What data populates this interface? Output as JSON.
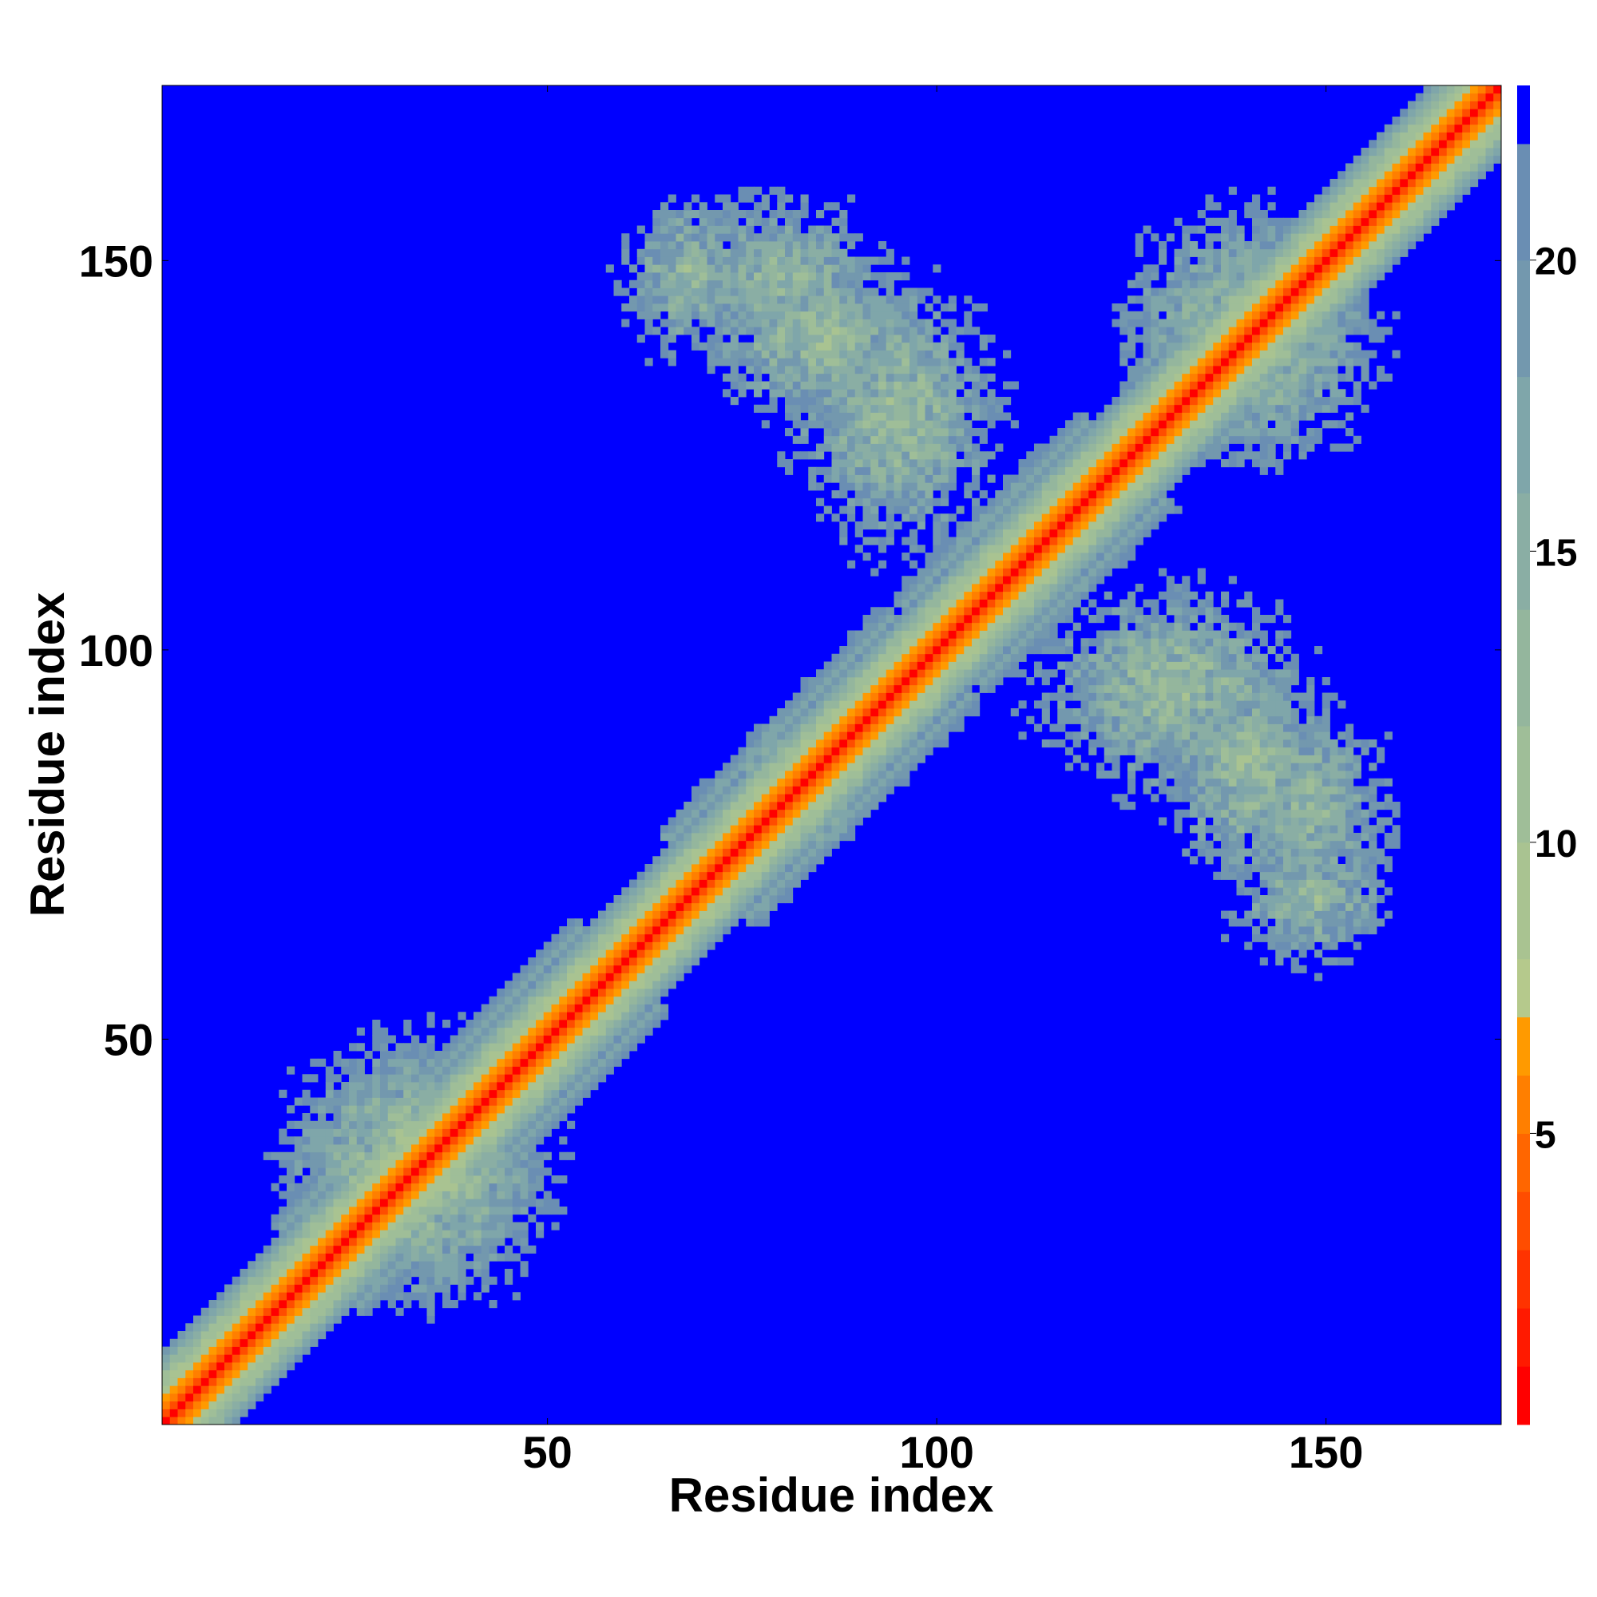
{
  "chart_data": {
    "type": "heatmap",
    "title": "",
    "xlabel": "Residue index",
    "ylabel": "Residue index",
    "n_residues": 172,
    "xlim": [
      1,
      172
    ],
    "ylim": [
      1,
      172
    ],
    "x_ticks": [
      50,
      100,
      150
    ],
    "y_ticks": [
      50,
      100,
      150
    ],
    "colorbar": {
      "range": [
        0,
        23
      ],
      "ticks": [
        5,
        10,
        15,
        20
      ],
      "levels": [
        {
          "max": 1,
          "color": "#ff0000"
        },
        {
          "max": 2,
          "color": "#ff1a00"
        },
        {
          "max": 3,
          "color": "#ff3300"
        },
        {
          "max": 4,
          "color": "#ff4d00"
        },
        {
          "max": 5,
          "color": "#ff6600"
        },
        {
          "max": 6,
          "color": "#ff7f00"
        },
        {
          "max": 7,
          "color": "#ff9a00"
        },
        {
          "max": 8,
          "color": "#b5c98c"
        },
        {
          "max": 10,
          "color": "#a9c391"
        },
        {
          "max": 12,
          "color": "#9fbe98"
        },
        {
          "max": 14,
          "color": "#94b69d"
        },
        {
          "max": 16,
          "color": "#8aaea4"
        },
        {
          "max": 18,
          "color": "#7fa6aa"
        },
        {
          "max": 20,
          "color": "#7398ae"
        },
        {
          "max": 22,
          "color": "#6a8eb3"
        },
        {
          "max": 23,
          "color": "#0000ff"
        }
      ],
      "far_color": "#0000ff"
    },
    "description_values": {
      "diagonal_width": 0.5,
      "near_diagonal_width": 8,
      "contact_patches": [
        {
          "x": [
            88,
            96
          ],
          "y": [
            90,
            96
          ],
          "center_x": 80,
          "center_y": 85,
          "min_value": 7
        },
        {
          "x": [
            68,
            96
          ],
          "y": [
            130,
            150
          ],
          "center_x": 85,
          "center_y": 140,
          "min_value": 7
        },
        {
          "x": [
            60,
            75
          ],
          "y": [
            140,
            160
          ],
          "center_x": 68,
          "center_y": 148,
          "min_value": 8
        },
        {
          "x": [
            115,
            150
          ],
          "y": [
            80,
            105
          ],
          "center_x": 130,
          "center_y": 95,
          "min_value": 7
        },
        {
          "x": [
            140,
            160
          ],
          "y": [
            68,
            95
          ],
          "center_x": 148,
          "center_y": 80,
          "min_value": 8
        },
        {
          "x": [
            130,
            162
          ],
          "y": [
            130,
            162
          ],
          "center_x": 140,
          "center_y": 140,
          "min_value": 7
        },
        {
          "x": [
            15,
            45
          ],
          "y": [
            15,
            45
          ],
          "center_x": 32,
          "center_y": 34,
          "min_value": 6
        },
        {
          "x": [
            1,
            10
          ],
          "y": [
            1,
            10
          ],
          "center_x": 4,
          "center_y": 5,
          "min_value": 6
        }
      ]
    }
  }
}
